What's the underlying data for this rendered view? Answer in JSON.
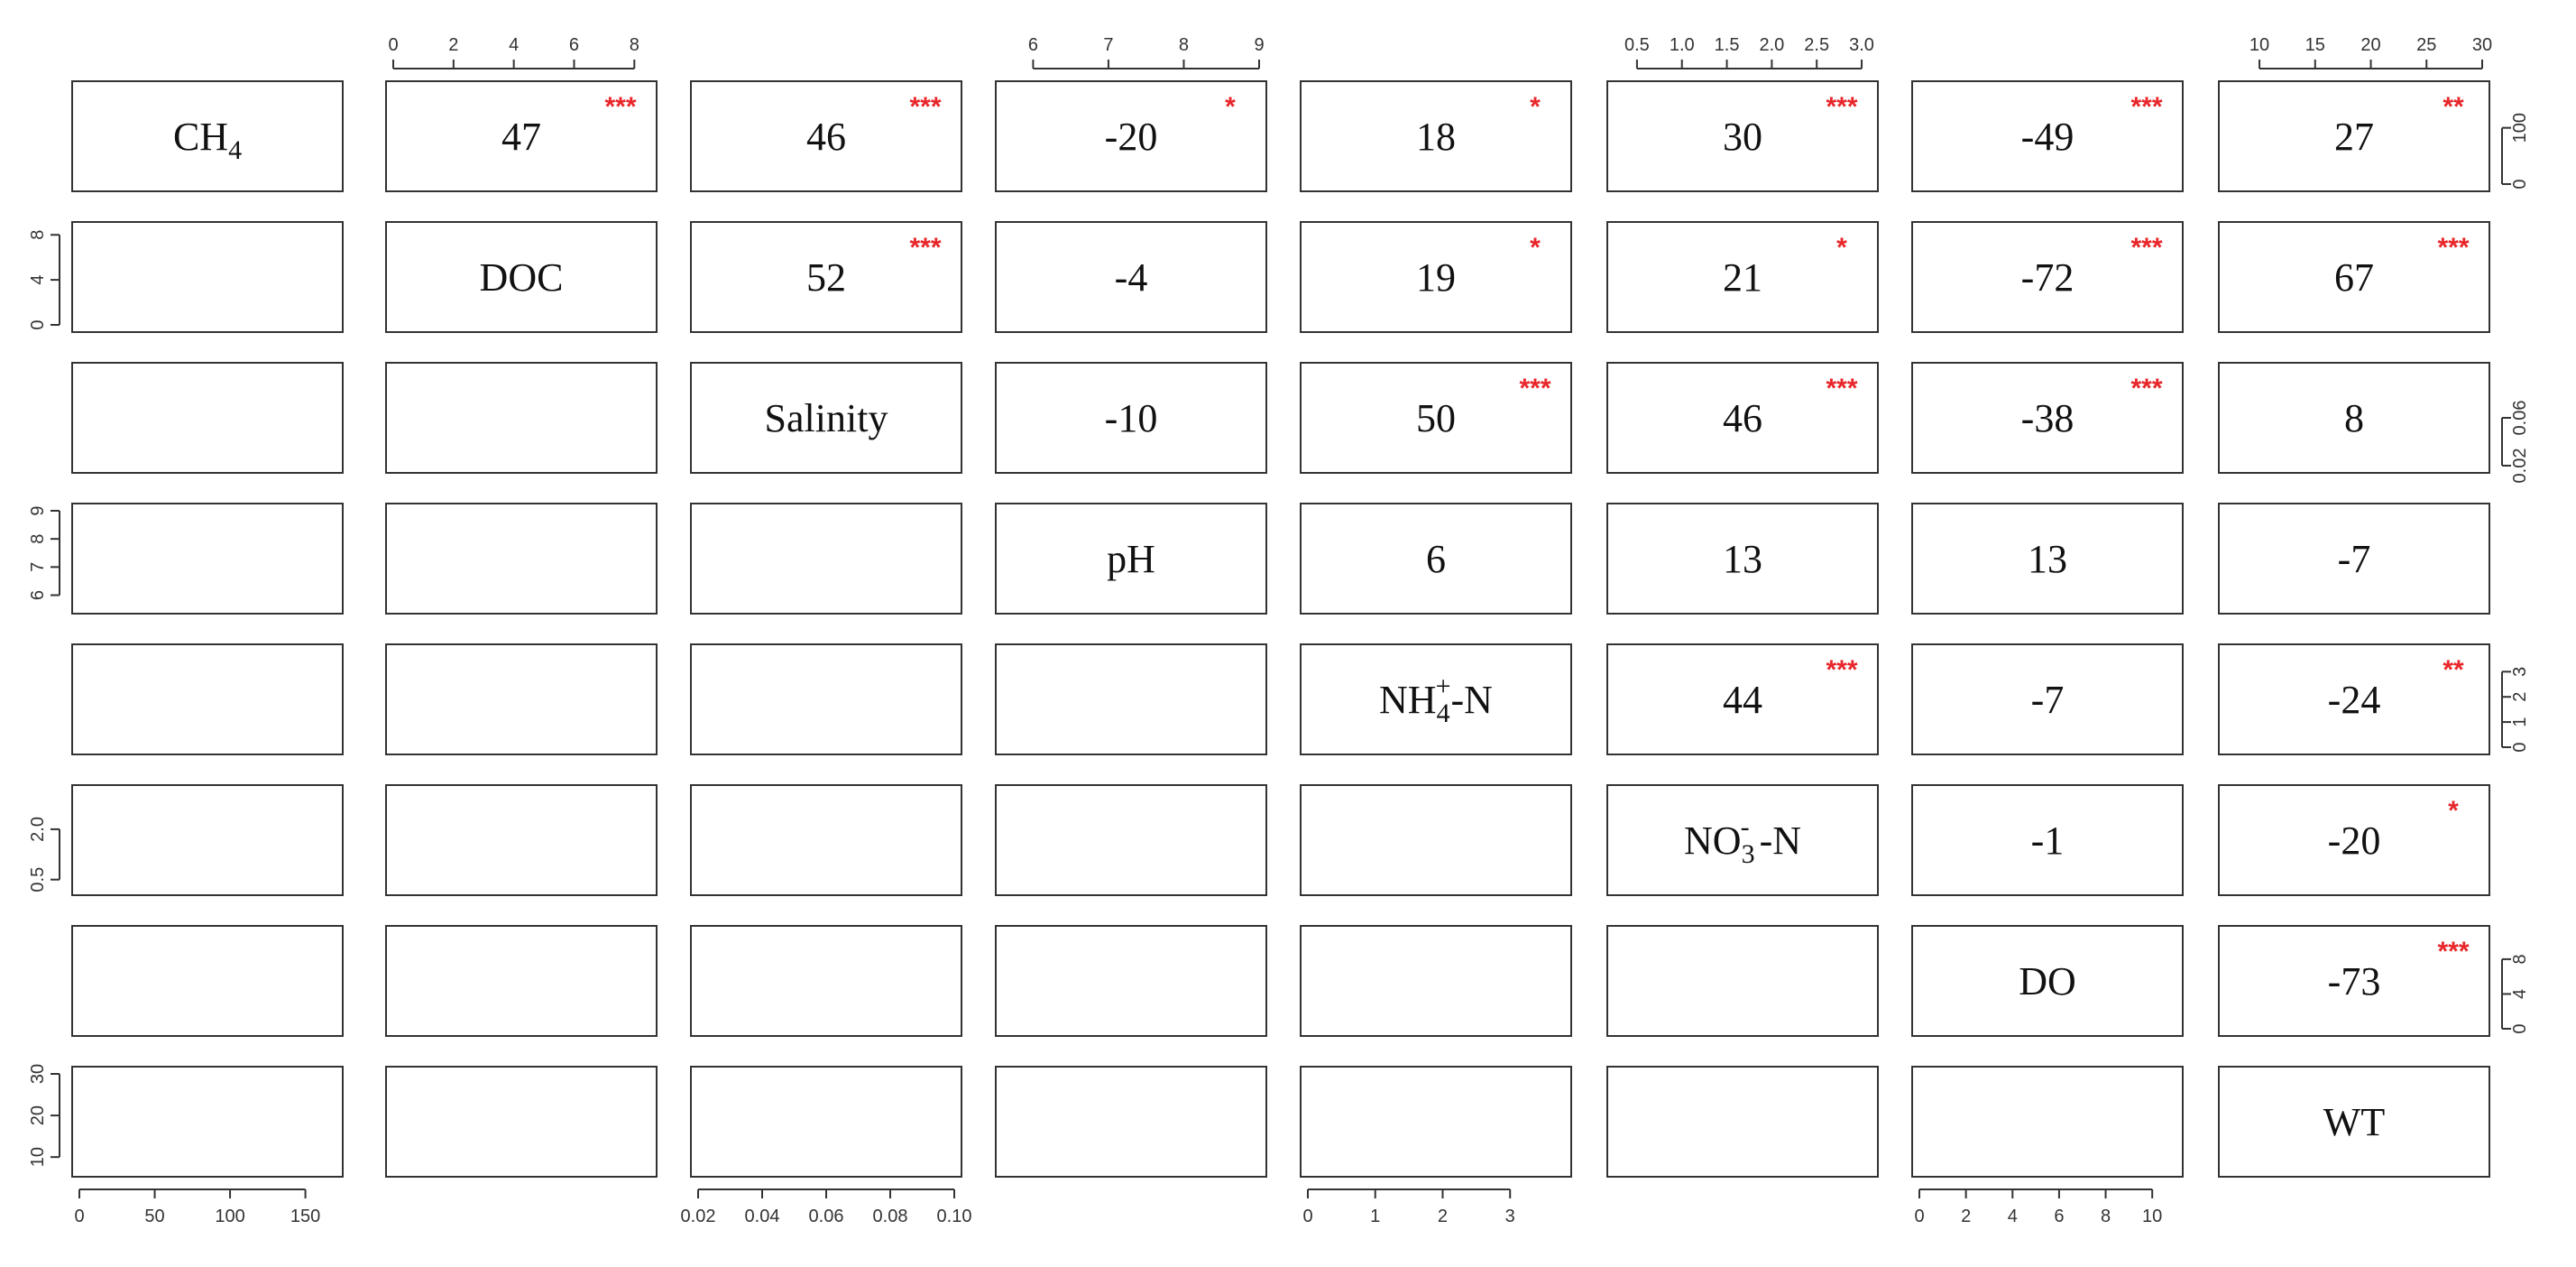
{
  "chart_data": {
    "type": "scatter",
    "variables": [
      {
        "id": "CH4",
        "label": "CH",
        "sub": "4",
        "sup": "",
        "suffix": ""
      },
      {
        "id": "DOC",
        "label": "DOC",
        "sub": "",
        "sup": "",
        "suffix": ""
      },
      {
        "id": "Salinity",
        "label": "Salinity",
        "sub": "",
        "sup": "",
        "suffix": ""
      },
      {
        "id": "pH",
        "label": "pH",
        "sub": "",
        "sup": "",
        "suffix": ""
      },
      {
        "id": "NH4N",
        "label": "NH",
        "sub": "4",
        "sup": "+",
        "suffix": "-N"
      },
      {
        "id": "NO3N",
        "label": "NO",
        "sub": "3",
        "sup": "-",
        "suffix": " -N"
      },
      {
        "id": "DO",
        "label": "DO",
        "sub": "",
        "sup": "",
        "suffix": ""
      },
      {
        "id": "WT",
        "label": "WT",
        "sub": "",
        "sup": "",
        "suffix": ""
      }
    ],
    "ranges": [
      [
        0,
        170
      ],
      [
        0,
        8.5
      ],
      [
        0.02,
        0.1
      ],
      [
        5.6,
        9
      ],
      [
        0,
        3.8
      ],
      [
        0.25,
        3.1
      ],
      [
        0,
        11
      ],
      [
        7,
        30
      ]
    ],
    "axis_ticks": {
      "bottom": [
        {
          "col": 0,
          "ticks": [
            "0",
            "50",
            "100",
            "150"
          ],
          "values": [
            0,
            50,
            100,
            150
          ]
        },
        {
          "col": 2,
          "ticks": [
            "0.02",
            "0.04",
            "0.06",
            "0.08",
            "0.10"
          ],
          "values": [
            0.02,
            0.04,
            0.06,
            0.08,
            0.1
          ]
        },
        {
          "col": 4,
          "ticks": [
            "0",
            "1",
            "2",
            "3"
          ],
          "values": [
            0,
            1,
            2,
            3
          ]
        },
        {
          "col": 6,
          "ticks": [
            "0",
            "2",
            "4",
            "6",
            "8",
            "10"
          ],
          "values": [
            0,
            2,
            4,
            6,
            8,
            10
          ]
        }
      ],
      "top": [
        {
          "col": 1,
          "ticks": [
            "0",
            "2",
            "4",
            "6",
            "8"
          ],
          "values": [
            0,
            2,
            4,
            6,
            8
          ]
        },
        {
          "col": 3,
          "ticks": [
            "6",
            "7",
            "8",
            "9"
          ],
          "values": [
            6,
            7,
            8,
            9
          ]
        },
        {
          "col": 5,
          "ticks": [
            "0.5",
            "1.0",
            "1.5",
            "2.0",
            "2.5",
            "3.0"
          ],
          "values": [
            0.5,
            1.0,
            1.5,
            2.0,
            2.5,
            3.0
          ]
        },
        {
          "col": 7,
          "ticks": [
            "10",
            "15",
            "20",
            "25",
            "30"
          ],
          "values": [
            10,
            15,
            20,
            25,
            30
          ]
        }
      ],
      "left": [
        {
          "row": 1,
          "ticks": [
            "0",
            "4",
            "8"
          ],
          "values": [
            0,
            4,
            8
          ]
        },
        {
          "row": 3,
          "ticks": [
            "6",
            "7",
            "8",
            "9"
          ],
          "values": [
            6,
            7,
            8,
            9
          ]
        },
        {
          "row": 5,
          "ticks": [
            "0.5",
            "2.0"
          ],
          "values": [
            0.5,
            2.0
          ]
        },
        {
          "row": 7,
          "ticks": [
            "10",
            "20",
            "30"
          ],
          "values": [
            10,
            20,
            30
          ]
        }
      ],
      "right": [
        {
          "row": 0,
          "ticks": [
            "0",
            "100"
          ],
          "values": [
            0,
            100
          ]
        },
        {
          "row": 2,
          "ticks": [
            "0.02",
            "0.06"
          ],
          "values": [
            0.02,
            0.06
          ]
        },
        {
          "row": 4,
          "ticks": [
            "0",
            "1",
            "2",
            "3"
          ],
          "values": [
            0,
            1,
            2,
            3
          ]
        },
        {
          "row": 6,
          "ticks": [
            "0",
            "4",
            "8"
          ],
          "values": [
            0,
            4,
            8
          ]
        }
      ]
    },
    "correlations": [
      {
        "row": 0,
        "col": 1,
        "value": "47",
        "stars": "***"
      },
      {
        "row": 0,
        "col": 2,
        "value": "46",
        "stars": "***"
      },
      {
        "row": 0,
        "col": 3,
        "value": "-20",
        "stars": "*"
      },
      {
        "row": 0,
        "col": 4,
        "value": "18",
        "stars": "*"
      },
      {
        "row": 0,
        "col": 5,
        "value": "30",
        "stars": "***"
      },
      {
        "row": 0,
        "col": 6,
        "value": "-49",
        "stars": "***"
      },
      {
        "row": 0,
        "col": 7,
        "value": "27",
        "stars": "**"
      },
      {
        "row": 1,
        "col": 2,
        "value": "52",
        "stars": "***"
      },
      {
        "row": 1,
        "col": 3,
        "value": "-4",
        "stars": ""
      },
      {
        "row": 1,
        "col": 4,
        "value": "19",
        "stars": "*"
      },
      {
        "row": 1,
        "col": 5,
        "value": "21",
        "stars": "*"
      },
      {
        "row": 1,
        "col": 6,
        "value": "-72",
        "stars": "***"
      },
      {
        "row": 1,
        "col": 7,
        "value": "67",
        "stars": "***"
      },
      {
        "row": 2,
        "col": 3,
        "value": "-10",
        "stars": ""
      },
      {
        "row": 2,
        "col": 4,
        "value": "50",
        "stars": "***"
      },
      {
        "row": 2,
        "col": 5,
        "value": "46",
        "stars": "***"
      },
      {
        "row": 2,
        "col": 6,
        "value": "-38",
        "stars": "***"
      },
      {
        "row": 2,
        "col": 7,
        "value": "8",
        "stars": ""
      },
      {
        "row": 3,
        "col": 4,
        "value": "6",
        "stars": ""
      },
      {
        "row": 3,
        "col": 5,
        "value": "13",
        "stars": ""
      },
      {
        "row": 3,
        "col": 6,
        "value": "13",
        "stars": ""
      },
      {
        "row": 3,
        "col": 7,
        "value": "-7",
        "stars": ""
      },
      {
        "row": 4,
        "col": 5,
        "value": "44",
        "stars": "***"
      },
      {
        "row": 4,
        "col": 6,
        "value": "-7",
        "stars": ""
      },
      {
        "row": 4,
        "col": 7,
        "value": "-24",
        "stars": "**"
      },
      {
        "row": 5,
        "col": 6,
        "value": "-1",
        "stars": ""
      },
      {
        "row": 5,
        "col": 7,
        "value": "-20",
        "stars": "*"
      },
      {
        "row": 6,
        "col": 7,
        "value": "-73",
        "stars": "***"
      }
    ],
    "observations": [],
    "colors": {
      "stars": "#e8262a",
      "points": "#111111",
      "frame": "#333333"
    },
    "point_marker": "open circle",
    "grid": false
  }
}
